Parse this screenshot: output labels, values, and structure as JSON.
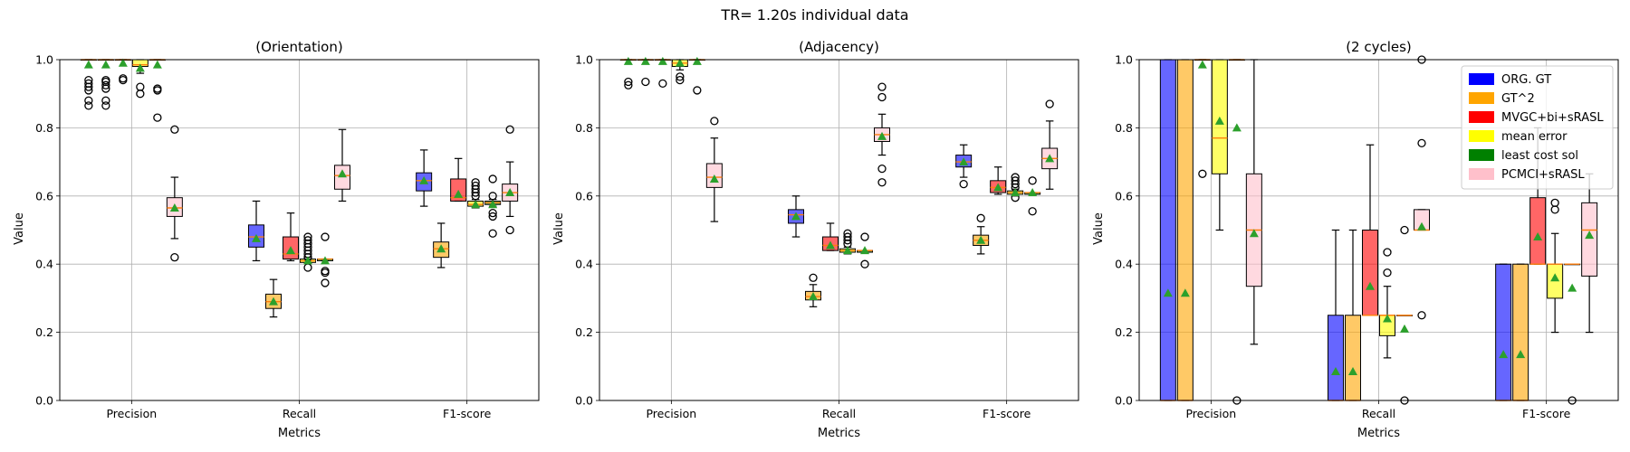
{
  "figure": {
    "title": "TR= 1.20s individual data"
  },
  "colors": {
    "ORG. GT": "#0000ff",
    "GT^2": "#ffa500",
    "MVGC+bi+sRASL": "#ff0000",
    "mean error": "#ffff00",
    "least cost sol": "#008000",
    "PCMCI+sRASL": "#ffc0cb",
    "median": "#ff7f0e",
    "mean_marker": "#2ca02c"
  },
  "chart_data": [
    {
      "type": "box",
      "title": "(Orientation)",
      "xlabel": "Metrics",
      "ylabel": "Value",
      "ylim": [
        0,
        1
      ],
      "yticks": [
        "0.0",
        "0.2",
        "0.4",
        "0.6",
        "0.8",
        "1.0"
      ],
      "categories": [
        "Precision",
        "Recall",
        "F1-score"
      ],
      "grid": true,
      "series": [
        {
          "name": "ORG. GT",
          "values": [
            {
              "q1": 1.0,
              "med": 1.0,
              "q3": 1.0,
              "lo": 1.0,
              "hi": 1.0,
              "mean": 0.985,
              "fliers": [
                0.94,
                0.93,
                0.92,
                0.91,
                0.88,
                0.865
              ]
            },
            {
              "q1": 0.45,
              "med": 0.48,
              "q3": 0.515,
              "lo": 0.41,
              "hi": 0.585,
              "mean": 0.475
            },
            {
              "q1": 0.615,
              "med": 0.645,
              "q3": 0.668,
              "lo": 0.57,
              "hi": 0.735,
              "mean": 0.645
            }
          ]
        },
        {
          "name": "GT^2",
          "values": [
            {
              "q1": 1.0,
              "med": 1.0,
              "q3": 1.0,
              "lo": 1.0,
              "hi": 1.0,
              "mean": 0.985,
              "fliers": [
                0.94,
                0.935,
                0.925,
                0.915,
                0.88,
                0.865
              ]
            },
            {
              "q1": 0.27,
              "med": 0.29,
              "q3": 0.312,
              "lo": 0.245,
              "hi": 0.355,
              "mean": 0.29
            },
            {
              "q1": 0.42,
              "med": 0.445,
              "q3": 0.465,
              "lo": 0.39,
              "hi": 0.52,
              "mean": 0.445
            }
          ]
        },
        {
          "name": "MVGC+bi+sRASL",
          "values": [
            {
              "q1": 1.0,
              "med": 1.0,
              "q3": 1.0,
              "lo": 1.0,
              "hi": 1.0,
              "mean": 0.99,
              "fliers": [
                0.945,
                0.94
              ]
            },
            {
              "q1": 0.415,
              "med": 0.43,
              "q3": 0.48,
              "lo": 0.41,
              "hi": 0.55,
              "mean": 0.44
            },
            {
              "q1": 0.585,
              "med": 0.595,
              "q3": 0.65,
              "lo": 0.585,
              "hi": 0.71,
              "mean": 0.605
            }
          ]
        },
        {
          "name": "mean error",
          "values": [
            {
              "q1": 0.98,
              "med": 0.985,
              "q3": 1.0,
              "lo": 0.96,
              "hi": 1.0,
              "mean": 0.975,
              "fliers": [
                0.92,
                0.9
              ]
            },
            {
              "q1": 0.405,
              "med": 0.41,
              "q3": 0.415,
              "lo": 0.405,
              "hi": 0.42,
              "mean": 0.41,
              "fliers": [
                0.48,
                0.47,
                0.46,
                0.45,
                0.44,
                0.43,
                0.42,
                0.39
              ]
            },
            {
              "q1": 0.57,
              "med": 0.575,
              "q3": 0.585,
              "lo": 0.565,
              "hi": 0.59,
              "mean": 0.575,
              "fliers": [
                0.64,
                0.63,
                0.62,
                0.61,
                0.6
              ]
            }
          ]
        },
        {
          "name": "least cost sol",
          "values": [
            {
              "q1": 1.0,
              "med": 1.0,
              "q3": 1.0,
              "lo": 1.0,
              "hi": 1.0,
              "mean": 0.985,
              "fliers": [
                0.915,
                0.91,
                0.83
              ]
            },
            {
              "q1": 0.41,
              "med": 0.415,
              "q3": 0.415,
              "lo": 0.41,
              "hi": 0.415,
              "mean": 0.41,
              "fliers": [
                0.48,
                0.38,
                0.375,
                0.345
              ]
            },
            {
              "q1": 0.575,
              "med": 0.58,
              "q3": 0.585,
              "lo": 0.57,
              "hi": 0.59,
              "mean": 0.575,
              "fliers": [
                0.65,
                0.6,
                0.55,
                0.54,
                0.49
              ]
            }
          ]
        },
        {
          "name": "PCMCI+sRASL",
          "values": [
            {
              "q1": 0.54,
              "med": 0.565,
              "q3": 0.595,
              "lo": 0.475,
              "hi": 0.655,
              "mean": 0.565,
              "fliers": [
                0.795,
                0.42
              ]
            },
            {
              "q1": 0.62,
              "med": 0.66,
              "q3": 0.69,
              "lo": 0.585,
              "hi": 0.795,
              "mean": 0.665
            },
            {
              "q1": 0.585,
              "med": 0.61,
              "q3": 0.635,
              "lo": 0.54,
              "hi": 0.7,
              "mean": 0.61,
              "fliers": [
                0.795,
                0.5
              ]
            }
          ]
        }
      ]
    },
    {
      "type": "box",
      "title": "(Adjacency)",
      "xlabel": "Metrics",
      "ylabel": "Value",
      "ylim": [
        0,
        1
      ],
      "yticks": [
        "0.0",
        "0.2",
        "0.4",
        "0.6",
        "0.8",
        "1.0"
      ],
      "categories": [
        "Precision",
        "Recall",
        "F1-score"
      ],
      "grid": true,
      "series": [
        {
          "name": "ORG. GT",
          "values": [
            {
              "q1": 1.0,
              "med": 1.0,
              "q3": 1.0,
              "lo": 1.0,
              "hi": 1.0,
              "mean": 0.995,
              "fliers": [
                0.935,
                0.925
              ]
            },
            {
              "q1": 0.52,
              "med": 0.545,
              "q3": 0.56,
              "lo": 0.48,
              "hi": 0.6,
              "mean": 0.54
            },
            {
              "q1": 0.685,
              "med": 0.7,
              "q3": 0.72,
              "lo": 0.655,
              "hi": 0.75,
              "mean": 0.7,
              "fliers": [
                0.635
              ]
            }
          ]
        },
        {
          "name": "GT^2",
          "values": [
            {
              "q1": 1.0,
              "med": 1.0,
              "q3": 1.0,
              "lo": 1.0,
              "hi": 1.0,
              "mean": 0.995,
              "fliers": [
                0.935
              ]
            },
            {
              "q1": 0.295,
              "med": 0.305,
              "q3": 0.32,
              "lo": 0.275,
              "hi": 0.34,
              "mean": 0.305,
              "fliers": [
                0.36
              ]
            },
            {
              "q1": 0.455,
              "med": 0.47,
              "q3": 0.485,
              "lo": 0.43,
              "hi": 0.51,
              "mean": 0.47,
              "fliers": [
                0.535
              ]
            }
          ]
        },
        {
          "name": "MVGC+bi+sRASL",
          "values": [
            {
              "q1": 1.0,
              "med": 1.0,
              "q3": 1.0,
              "lo": 1.0,
              "hi": 1.0,
              "mean": 0.995,
              "fliers": [
                0.93
              ]
            },
            {
              "q1": 0.44,
              "med": 0.455,
              "q3": 0.48,
              "lo": 0.44,
              "hi": 0.52,
              "mean": 0.455
            },
            {
              "q1": 0.61,
              "med": 0.625,
              "q3": 0.645,
              "lo": 0.605,
              "hi": 0.685,
              "mean": 0.625
            }
          ]
        },
        {
          "name": "mean error",
          "values": [
            {
              "q1": 0.98,
              "med": 0.99,
              "q3": 1.0,
              "lo": 0.97,
              "hi": 1.0,
              "mean": 0.99,
              "fliers": [
                0.95,
                0.94
              ]
            },
            {
              "q1": 0.435,
              "med": 0.44,
              "q3": 0.445,
              "lo": 0.43,
              "hi": 0.45,
              "mean": 0.44,
              "fliers": [
                0.49,
                0.48,
                0.47,
                0.46
              ]
            },
            {
              "q1": 0.605,
              "med": 0.61,
              "q3": 0.615,
              "lo": 0.6,
              "hi": 0.62,
              "mean": 0.61,
              "fliers": [
                0.655,
                0.645,
                0.635,
                0.625,
                0.595
              ]
            }
          ]
        },
        {
          "name": "least cost sol",
          "values": [
            {
              "q1": 1.0,
              "med": 1.0,
              "q3": 1.0,
              "lo": 1.0,
              "hi": 1.0,
              "mean": 0.995,
              "fliers": [
                0.91
              ]
            },
            {
              "q1": 0.435,
              "med": 0.44,
              "q3": 0.44,
              "lo": 0.435,
              "hi": 0.44,
              "mean": 0.44,
              "fliers": [
                0.48,
                0.4
              ]
            },
            {
              "q1": 0.605,
              "med": 0.61,
              "q3": 0.61,
              "lo": 0.605,
              "hi": 0.61,
              "mean": 0.61,
              "fliers": [
                0.645,
                0.555
              ]
            }
          ]
        },
        {
          "name": "PCMCI+sRASL",
          "values": [
            {
              "q1": 0.625,
              "med": 0.655,
              "q3": 0.695,
              "lo": 0.525,
              "hi": 0.77,
              "mean": 0.65,
              "fliers": [
                0.82
              ]
            },
            {
              "q1": 0.76,
              "med": 0.78,
              "q3": 0.8,
              "lo": 0.72,
              "hi": 0.84,
              "mean": 0.775,
              "fliers": [
                0.92,
                0.89,
                0.68,
                0.64
              ]
            },
            {
              "q1": 0.68,
              "med": 0.71,
              "q3": 0.74,
              "lo": 0.62,
              "hi": 0.82,
              "mean": 0.71,
              "fliers": [
                0.87
              ]
            }
          ]
        }
      ]
    },
    {
      "type": "box",
      "title": "(2 cycles)",
      "xlabel": "Metrics",
      "ylabel": "Value",
      "ylim": [
        0,
        1
      ],
      "yticks": [
        "0.0",
        "0.2",
        "0.4",
        "0.6",
        "0.8",
        "1.0"
      ],
      "categories": [
        "Precision",
        "Recall",
        "F1-score"
      ],
      "grid": true,
      "legend": {
        "placement": "upper right",
        "entries": [
          "ORG. GT",
          "GT^2",
          "MVGC+bi+sRASL",
          "mean error",
          "least cost sol",
          "PCMCI+sRASL"
        ]
      },
      "series": [
        {
          "name": "ORG. GT",
          "values": [
            {
              "q1": 0.0,
              "med": 0.0,
              "q3": 1.0,
              "lo": 0.0,
              "hi": 1.0,
              "mean": 0.315
            },
            {
              "q1": 0.0,
              "med": 0.0,
              "q3": 0.25,
              "lo": 0.0,
              "hi": 0.5,
              "mean": 0.085
            },
            {
              "q1": 0.0,
              "med": 0.0,
              "q3": 0.4,
              "lo": 0.0,
              "hi": 0.4,
              "mean": 0.135
            }
          ]
        },
        {
          "name": "GT^2",
          "values": [
            {
              "q1": 0.0,
              "med": 0.0,
              "q3": 1.0,
              "lo": 0.0,
              "hi": 1.0,
              "mean": 0.315
            },
            {
              "q1": 0.0,
              "med": 0.0,
              "q3": 0.25,
              "lo": 0.0,
              "hi": 0.5,
              "mean": 0.085
            },
            {
              "q1": 0.0,
              "med": 0.0,
              "q3": 0.4,
              "lo": 0.0,
              "hi": 0.4,
              "mean": 0.135
            }
          ]
        },
        {
          "name": "MVGC+bi+sRASL",
          "values": [
            {
              "q1": 1.0,
              "med": 1.0,
              "q3": 1.0,
              "lo": 1.0,
              "hi": 1.0,
              "mean": 0.985,
              "fliers": [
                0.665
              ]
            },
            {
              "q1": 0.25,
              "med": 0.25,
              "q3": 0.5,
              "lo": 0.25,
              "hi": 0.75,
              "mean": 0.335
            },
            {
              "q1": 0.4,
              "med": 0.4,
              "q3": 0.595,
              "lo": 0.4,
              "hi": 0.8,
              "mean": 0.48
            }
          ]
        },
        {
          "name": "mean error",
          "values": [
            {
              "q1": 0.665,
              "med": 0.77,
              "q3": 1.0,
              "lo": 0.5,
              "hi": 1.0,
              "mean": 0.82
            },
            {
              "q1": 0.19,
              "med": 0.25,
              "q3": 0.25,
              "lo": 0.125,
              "hi": 0.335,
              "mean": 0.24,
              "fliers": [
                0.435,
                0.375
              ]
            },
            {
              "q1": 0.3,
              "med": 0.4,
              "q3": 0.4,
              "lo": 0.2,
              "hi": 0.49,
              "mean": 0.36,
              "fliers": [
                0.58,
                0.56
              ]
            }
          ]
        },
        {
          "name": "least cost sol",
          "values": [
            {
              "q1": 1.0,
              "med": 1.0,
              "q3": 1.0,
              "lo": 1.0,
              "hi": 1.0,
              "mean": 0.8,
              "fliers": [
                0.0
              ]
            },
            {
              "q1": 0.25,
              "med": 0.25,
              "q3": 0.25,
              "lo": 0.25,
              "hi": 0.25,
              "mean": 0.21,
              "fliers": [
                0.0,
                0.5
              ]
            },
            {
              "q1": 0.4,
              "med": 0.4,
              "q3": 0.4,
              "lo": 0.4,
              "hi": 0.4,
              "mean": 0.33,
              "fliers": [
                0.0
              ]
            }
          ]
        },
        {
          "name": "PCMCI+sRASL",
          "values": [
            {
              "q1": 0.335,
              "med": 0.5,
              "q3": 0.665,
              "lo": 0.165,
              "hi": 1.0,
              "mean": 0.49
            },
            {
              "q1": 0.5,
              "med": 0.5,
              "q3": 0.56,
              "lo": 0.5,
              "hi": 0.56,
              "mean": 0.51,
              "fliers": [
                1.0,
                0.755,
                0.25
              ]
            },
            {
              "q1": 0.365,
              "med": 0.5,
              "q3": 0.58,
              "lo": 0.2,
              "hi": 0.665,
              "mean": 0.485
            }
          ]
        }
      ]
    }
  ]
}
